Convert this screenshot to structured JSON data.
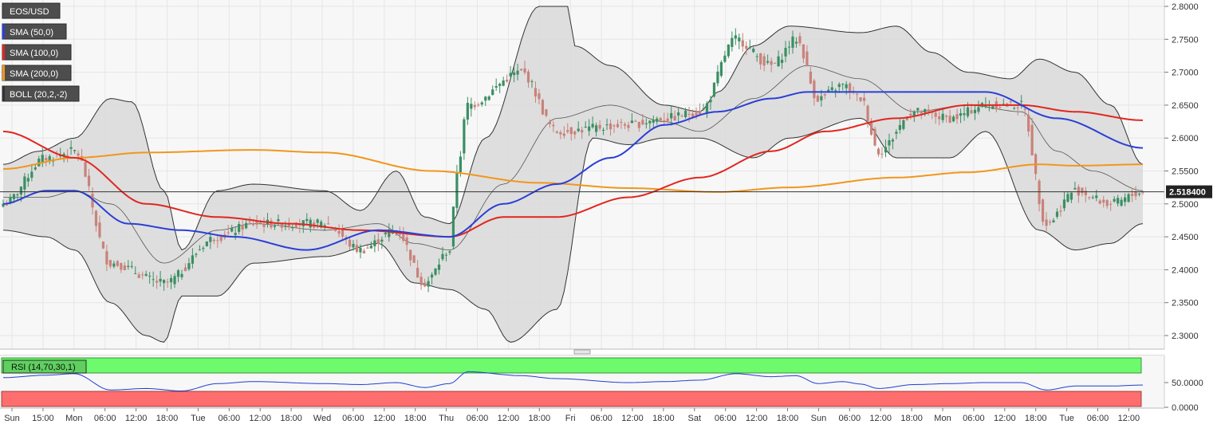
{
  "colors": {
    "bull": "#3a8f63",
    "bear": "#c9827a",
    "sma50": "#2b3fd6",
    "sma100": "#e0271f",
    "sma200": "#f2961b",
    "boll_fill": "#d9d9d9",
    "boll_line": "#333333",
    "rsi_line": "#1f3fd1",
    "rsi_over": "#6dfa6d",
    "rsi_under": "#ff6e6e"
  },
  "legend": [
    {
      "label": "EOS/USD",
      "swatch": ""
    },
    {
      "label": "SMA (50,0)",
      "swatch": "#2b3fd6"
    },
    {
      "label": "SMA (100,0)",
      "swatch": "#e0271f"
    },
    {
      "label": "SMA (200,0)",
      "swatch": "#f2961b"
    },
    {
      "label": "BOLL (20,2,-2)",
      "swatch": "#333333"
    }
  ],
  "chart_data": [
    {
      "type": "candlestick",
      "title": "EOS/USD",
      "ylim": [
        2.28,
        2.81
      ],
      "y_ticks": [
        "2.8000",
        "2.7500",
        "2.7000",
        "2.6500",
        "2.6000",
        "2.5500",
        "2.5000",
        "2.4500",
        "2.4000",
        "2.3500",
        "2.3000"
      ],
      "last_price": "2.518400",
      "x_ticks": [
        "Sun",
        "15:00",
        "Mon",
        "06:00",
        "12:00",
        "18:00",
        "Tue",
        "06:00",
        "12:00",
        "18:00",
        "Wed",
        "06:00",
        "12:00",
        "18:00",
        "Thu",
        "06:00",
        "12:00",
        "18:00",
        "Fri",
        "06:00",
        "12:00",
        "18:00",
        "Sat",
        "06:00",
        "12:00",
        "18:00",
        "Sun",
        "06:00",
        "12:00",
        "18:00",
        "Mon",
        "06:00",
        "12:00",
        "18:00",
        "Tue",
        "06:00",
        "12:00"
      ],
      "close_anchors": [
        [
          0,
          2.5
        ],
        [
          12,
          2.57
        ],
        [
          20,
          2.58
        ],
        [
          30,
          2.41
        ],
        [
          45,
          2.38
        ],
        [
          60,
          2.45
        ],
        [
          70,
          2.47
        ],
        [
          90,
          2.47
        ],
        [
          100,
          2.43
        ],
        [
          110,
          2.46
        ],
        [
          118,
          2.38
        ],
        [
          125,
          2.43
        ],
        [
          127,
          2.55
        ],
        [
          130,
          2.65
        ],
        [
          145,
          2.7
        ],
        [
          155,
          2.61
        ],
        [
          175,
          2.62
        ],
        [
          185,
          2.63
        ],
        [
          195,
          2.64
        ],
        [
          205,
          2.75
        ],
        [
          215,
          2.71
        ],
        [
          222,
          2.75
        ],
        [
          228,
          2.66
        ],
        [
          235,
          2.68
        ],
        [
          240,
          2.66
        ],
        [
          245,
          2.58
        ],
        [
          255,
          2.64
        ],
        [
          265,
          2.63
        ],
        [
          275,
          2.65
        ],
        [
          285,
          2.65
        ],
        [
          292,
          2.47
        ],
        [
          300,
          2.52
        ],
        [
          310,
          2.5
        ],
        [
          319,
          2.518
        ]
      ],
      "sma50_anchors": [
        [
          0,
          2.5
        ],
        [
          12,
          2.52
        ],
        [
          20,
          2.52
        ],
        [
          35,
          2.47
        ],
        [
          50,
          2.46
        ],
        [
          65,
          2.45
        ],
        [
          85,
          2.43
        ],
        [
          105,
          2.46
        ],
        [
          125,
          2.45
        ],
        [
          140,
          2.5
        ],
        [
          155,
          2.53
        ],
        [
          170,
          2.57
        ],
        [
          185,
          2.62
        ],
        [
          200,
          2.64
        ],
        [
          215,
          2.66
        ],
        [
          225,
          2.67
        ],
        [
          245,
          2.67
        ],
        [
          265,
          2.67
        ],
        [
          275,
          2.67
        ],
        [
          295,
          2.63
        ],
        [
          319,
          2.585
        ]
      ],
      "sma100_anchors": [
        [
          0,
          2.61
        ],
        [
          20,
          2.57
        ],
        [
          40,
          2.5
        ],
        [
          60,
          2.48
        ],
        [
          80,
          2.47
        ],
        [
          100,
          2.46
        ],
        [
          125,
          2.45
        ],
        [
          140,
          2.48
        ],
        [
          155,
          2.48
        ],
        [
          175,
          2.51
        ],
        [
          195,
          2.54
        ],
        [
          215,
          2.58
        ],
        [
          230,
          2.61
        ],
        [
          250,
          2.63
        ],
        [
          270,
          2.65
        ],
        [
          285,
          2.65
        ],
        [
          300,
          2.64
        ],
        [
          319,
          2.627
        ]
      ],
      "sma200_anchors": [
        [
          0,
          2.553
        ],
        [
          20,
          2.57
        ],
        [
          40,
          2.578
        ],
        [
          70,
          2.582
        ],
        [
          90,
          2.578
        ],
        [
          120,
          2.55
        ],
        [
          150,
          2.532
        ],
        [
          175,
          2.524
        ],
        [
          200,
          2.518
        ],
        [
          220,
          2.525
        ],
        [
          250,
          2.54
        ],
        [
          270,
          2.548
        ],
        [
          290,
          2.56
        ],
        [
          300,
          2.558
        ],
        [
          319,
          2.56
        ]
      ],
      "boll_upper_anchors": [
        [
          0,
          2.56
        ],
        [
          10,
          2.58
        ],
        [
          20,
          2.6
        ],
        [
          30,
          2.66
        ],
        [
          36,
          2.655
        ],
        [
          45,
          2.52
        ],
        [
          50,
          2.43
        ],
        [
          60,
          2.52
        ],
        [
          70,
          2.53
        ],
        [
          90,
          2.52
        ],
        [
          100,
          2.49
        ],
        [
          110,
          2.55
        ],
        [
          118,
          2.48
        ],
        [
          125,
          2.47
        ],
        [
          135,
          2.6
        ],
        [
          150,
          2.8
        ],
        [
          158,
          2.8
        ],
        [
          160,
          2.74
        ],
        [
          170,
          2.71
        ],
        [
          185,
          2.65
        ],
        [
          195,
          2.64
        ],
        [
          200,
          2.67
        ],
        [
          210,
          2.74
        ],
        [
          220,
          2.77
        ],
        [
          240,
          2.76
        ],
        [
          250,
          2.77
        ],
        [
          260,
          2.73
        ],
        [
          270,
          2.7
        ],
        [
          282,
          2.69
        ],
        [
          290,
          2.72
        ],
        [
          300,
          2.7
        ],
        [
          310,
          2.65
        ],
        [
          319,
          2.56
        ]
      ],
      "boll_mid_anchors": [
        [
          0,
          2.51
        ],
        [
          12,
          2.51
        ],
        [
          20,
          2.52
        ],
        [
          30,
          2.5
        ],
        [
          45,
          2.41
        ],
        [
          60,
          2.46
        ],
        [
          70,
          2.47
        ],
        [
          90,
          2.46
        ],
        [
          105,
          2.47
        ],
        [
          115,
          2.44
        ],
        [
          125,
          2.43
        ],
        [
          140,
          2.53
        ],
        [
          155,
          2.63
        ],
        [
          170,
          2.65
        ],
        [
          185,
          2.625
        ],
        [
          195,
          2.61
        ],
        [
          210,
          2.66
        ],
        [
          225,
          2.71
        ],
        [
          240,
          2.69
        ],
        [
          255,
          2.64
        ],
        [
          270,
          2.65
        ],
        [
          285,
          2.64
        ],
        [
          295,
          2.58
        ],
        [
          305,
          2.55
        ],
        [
          319,
          2.52
        ]
      ],
      "boll_lower_anchors": [
        [
          0,
          2.46
        ],
        [
          12,
          2.45
        ],
        [
          20,
          2.43
        ],
        [
          30,
          2.35
        ],
        [
          40,
          2.3
        ],
        [
          45,
          2.29
        ],
        [
          50,
          2.36
        ],
        [
          60,
          2.36
        ],
        [
          70,
          2.41
        ],
        [
          90,
          2.42
        ],
        [
          105,
          2.44
        ],
        [
          115,
          2.38
        ],
        [
          125,
          2.37
        ],
        [
          135,
          2.34
        ],
        [
          142,
          2.29
        ],
        [
          155,
          2.34
        ],
        [
          165,
          2.6
        ],
        [
          175,
          2.59
        ],
        [
          185,
          2.6
        ],
        [
          195,
          2.6
        ],
        [
          210,
          2.57
        ],
        [
          220,
          2.6
        ],
        [
          240,
          2.63
        ],
        [
          250,
          2.57
        ],
        [
          265,
          2.57
        ],
        [
          275,
          2.61
        ],
        [
          290,
          2.46
        ],
        [
          300,
          2.43
        ],
        [
          310,
          2.44
        ],
        [
          319,
          2.47
        ]
      ],
      "candle_count": 320
    },
    {
      "type": "line",
      "title": "RSI (14,70,30,1)",
      "ylim": [
        0,
        100
      ],
      "y_ticks": [
        "50.0000",
        "0.0000"
      ],
      "overbought": 70,
      "oversold": 30,
      "rsi_anchors": [
        [
          0,
          60
        ],
        [
          12,
          65
        ],
        [
          20,
          68
        ],
        [
          30,
          35
        ],
        [
          40,
          38
        ],
        [
          50,
          33
        ],
        [
          60,
          48
        ],
        [
          70,
          52
        ],
        [
          90,
          48
        ],
        [
          100,
          46
        ],
        [
          110,
          50
        ],
        [
          118,
          40
        ],
        [
          125,
          48
        ],
        [
          130,
          72
        ],
        [
          145,
          64
        ],
        [
          155,
          58
        ],
        [
          175,
          50
        ],
        [
          185,
          52
        ],
        [
          195,
          55
        ],
        [
          205,
          68
        ],
        [
          215,
          62
        ],
        [
          222,
          64
        ],
        [
          228,
          48
        ],
        [
          235,
          52
        ],
        [
          240,
          47
        ],
        [
          245,
          38
        ],
        [
          255,
          46
        ],
        [
          265,
          48
        ],
        [
          275,
          50
        ],
        [
          285,
          50
        ],
        [
          292,
          35
        ],
        [
          300,
          43
        ],
        [
          310,
          43
        ],
        [
          319,
          45
        ]
      ]
    }
  ]
}
